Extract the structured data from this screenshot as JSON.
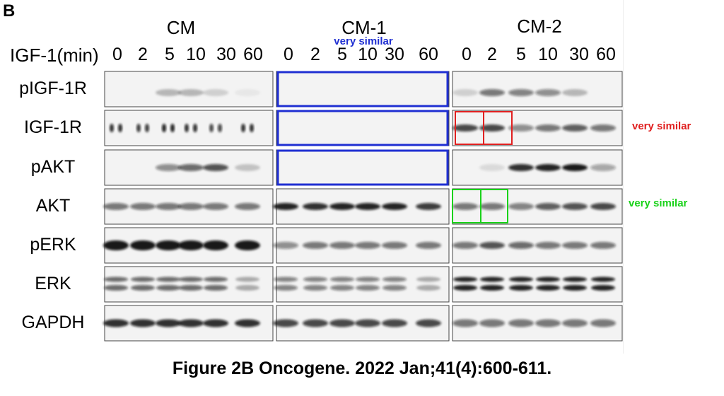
{
  "panel_letter": "B",
  "groups": [
    "CM",
    "CM-1",
    "CM-2"
  ],
  "time_axis_label": "IGF-1(min)",
  "time_points": [
    "0",
    "2",
    "5",
    "10",
    "30",
    "60"
  ],
  "rows": [
    "pIGF-1R",
    "IGF-1R",
    "pAKT",
    "AKT",
    "pERK",
    "ERK",
    "GAPDH"
  ],
  "annotations": {
    "blue_note": "very similar",
    "red_note": "very similar",
    "green_note": "very similar"
  },
  "annotation_colors": {
    "blue": "#1f2fd2",
    "red": "#e02020",
    "green": "#19d219"
  },
  "caption": "Figure 2B Oncogene. 2022 Jan;41(4):600-611."
}
